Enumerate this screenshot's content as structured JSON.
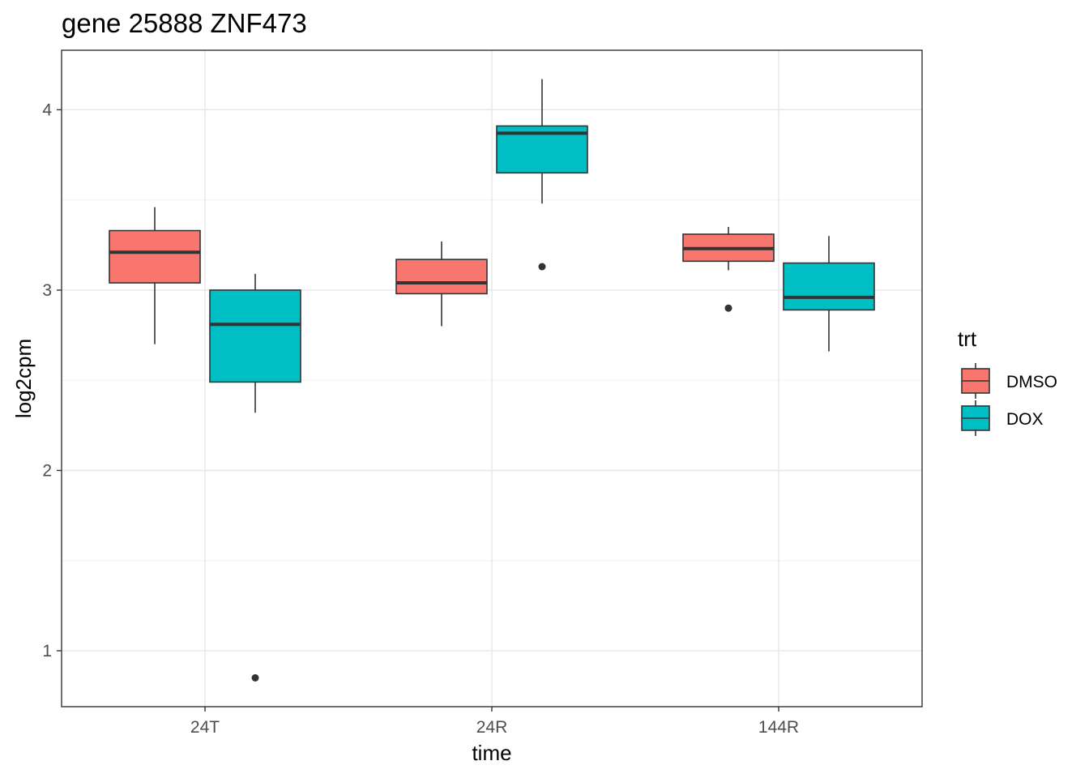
{
  "chart_data": {
    "type": "boxplot",
    "title": "gene 25888 ZNF473",
    "xlabel": "time",
    "ylabel": "log2cpm",
    "categories": [
      "24T",
      "24R",
      "144R"
    ],
    "ylim": [
      0.69,
      4.33
    ],
    "yticks": [
      1,
      2,
      3,
      4
    ],
    "grid": true,
    "legend": {
      "title": "trt",
      "position": "right"
    },
    "series": [
      {
        "name": "DMSO",
        "color": "#F8766D",
        "boxes": [
          {
            "category": "24T",
            "whisker_low": 2.7,
            "q1": 3.04,
            "median": 3.21,
            "q3": 3.33,
            "whisker_high": 3.46,
            "outliers": []
          },
          {
            "category": "24R",
            "whisker_low": 2.8,
            "q1": 2.98,
            "median": 3.04,
            "q3": 3.17,
            "whisker_high": 3.27,
            "outliers": []
          },
          {
            "category": "144R",
            "whisker_low": 3.11,
            "q1": 3.16,
            "median": 3.23,
            "q3": 3.31,
            "whisker_high": 3.35,
            "outliers": [
              2.9
            ]
          }
        ]
      },
      {
        "name": "DOX",
        "color": "#00BFC4",
        "boxes": [
          {
            "category": "24T",
            "whisker_low": 2.32,
            "q1": 2.49,
            "median": 2.81,
            "q3": 3.0,
            "whisker_high": 3.09,
            "outliers": [
              0.85
            ]
          },
          {
            "category": "24R",
            "whisker_low": 3.48,
            "q1": 3.65,
            "median": 3.87,
            "q3": 3.91,
            "whisker_high": 4.17,
            "outliers": [
              3.13
            ]
          },
          {
            "category": "144R",
            "whisker_low": 2.66,
            "q1": 2.89,
            "median": 2.96,
            "q3": 3.15,
            "whisker_high": 3.3,
            "outliers": []
          }
        ]
      }
    ]
  }
}
